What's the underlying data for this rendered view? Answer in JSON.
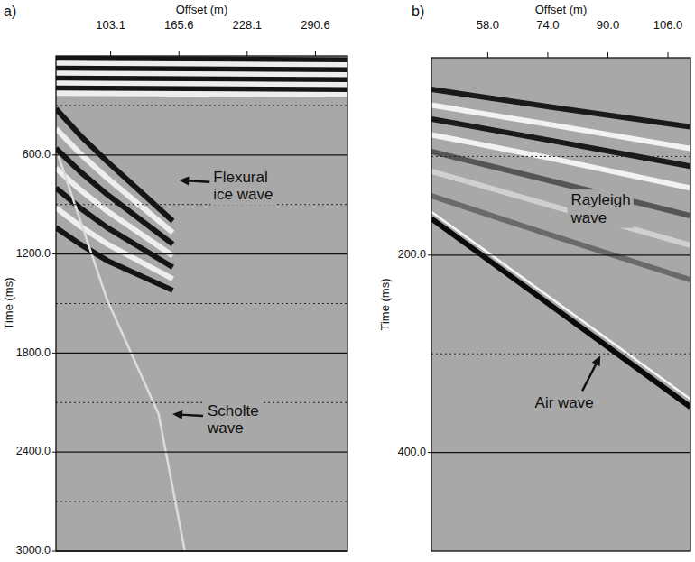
{
  "chart_data": [
    {
      "type": "line",
      "label": "a)",
      "x_label": "Offset (m)",
      "y_label": "Time (ms)",
      "xlim": [
        53,
        320
      ],
      "xticks": [
        103.1,
        165.6,
        228.1,
        290.6
      ],
      "ylim": [
        0,
        3000
      ],
      "yticks": [
        {
          "value": 600,
          "label": "600.0"
        },
        {
          "value": 1200,
          "label": "1200.0"
        },
        {
          "value": 1800,
          "label": "1800.0"
        },
        {
          "value": 2400,
          "label": "2400.0"
        },
        {
          "value": 3000,
          "label": "3000.0"
        }
      ],
      "grid": true,
      "series": [
        {
          "color": "#151515",
          "x": [
            53,
            320
          ],
          "values": [
            15,
            25
          ]
        },
        {
          "color": "#eeeeee",
          "x": [
            53,
            320
          ],
          "values": [
            45,
            55
          ]
        },
        {
          "color": "#151515",
          "x": [
            53,
            320
          ],
          "values": [
            75,
            85
          ]
        },
        {
          "color": "#eeeeee",
          "x": [
            53,
            320
          ],
          "values": [
            105,
            115
          ]
        },
        {
          "color": "#151515",
          "x": [
            53,
            320
          ],
          "values": [
            135,
            145
          ]
        },
        {
          "color": "#eeeeee",
          "x": [
            53,
            320
          ],
          "values": [
            165,
            175
          ]
        },
        {
          "color": "#151515",
          "x": [
            53,
            320
          ],
          "values": [
            195,
            205
          ]
        },
        {
          "color": "#eeeeee",
          "x": [
            53,
            320
          ],
          "values": [
            225,
            235
          ]
        },
        {
          "color": "#151515",
          "x": [
            53,
            75,
            100,
            130,
            160
          ],
          "values": [
            320,
            480,
            640,
            820,
            1000
          ]
        },
        {
          "color": "#eeeeee",
          "x": [
            53,
            75,
            100,
            130,
            160
          ],
          "values": [
            440,
            590,
            740,
            905,
            1070
          ]
        },
        {
          "color": "#151515",
          "x": [
            53,
            75,
            100,
            130,
            160
          ],
          "values": [
            560,
            700,
            840,
            990,
            1140
          ]
        },
        {
          "color": "#eeeeee",
          "x": [
            53,
            75,
            100,
            130,
            160
          ],
          "values": [
            680,
            810,
            940,
            1075,
            1210
          ]
        },
        {
          "color": "#151515",
          "x": [
            53,
            75,
            100,
            130,
            160
          ],
          "values": [
            800,
            920,
            1040,
            1160,
            1280
          ]
        },
        {
          "color": "#eeeeee",
          "x": [
            53,
            75,
            100,
            130,
            160
          ],
          "values": [
            920,
            1030,
            1140,
            1245,
            1350
          ]
        },
        {
          "color": "#151515",
          "x": [
            53,
            75,
            100,
            130,
            160
          ],
          "values": [
            1040,
            1140,
            1240,
            1330,
            1420
          ]
        },
        {
          "color": "#dcdcdc",
          "line_style": "thin",
          "x": [
            55,
            100,
            147,
            171
          ],
          "values": [
            600,
            1480,
            2170,
            3000
          ]
        }
      ],
      "annotations": [
        {
          "text": "Flexural ice wave",
          "x": 164,
          "y": 753
        },
        {
          "text": "Scholte wave",
          "x": 158,
          "y": 2170
        }
      ]
    },
    {
      "type": "line",
      "label": "b)",
      "x_label": "Offset (m)",
      "y_label": "Time (ms)",
      "xlim": [
        43,
        112
      ],
      "xticks": [
        {
          "value": 58,
          "label": "58.0"
        },
        {
          "value": 74,
          "label": "74.0"
        },
        {
          "value": 90,
          "label": "90.0"
        },
        {
          "value": 106,
          "label": "106.0"
        }
      ],
      "ylim": [
        0,
        500
      ],
      "yticks": [
        {
          "value": 200,
          "label": "200.0"
        },
        {
          "value": 400,
          "label": "400.0"
        }
      ],
      "grid": true,
      "series": [
        {
          "color": "#1a1a1a",
          "x": [
            43,
            75,
            112
          ],
          "values": [
            32,
            50,
            70
          ]
        },
        {
          "color": "#f2f2f2",
          "x": [
            43,
            75,
            112
          ],
          "values": [
            48,
            68,
            92
          ]
        },
        {
          "color": "#1a1a1a",
          "x": [
            43,
            75,
            112
          ],
          "values": [
            62,
            84,
            110
          ]
        },
        {
          "color": "#f2f2f2",
          "x": [
            43,
            75,
            112
          ],
          "values": [
            78,
            102,
            132
          ]
        },
        {
          "color": "#555555",
          "x": [
            43,
            75,
            112
          ],
          "values": [
            95,
            125,
            160
          ]
        },
        {
          "color": "#d0d0d0",
          "x": [
            43,
            75,
            112
          ],
          "values": [
            115,
            150,
            190
          ]
        },
        {
          "color": "#6a6a6a",
          "x": [
            43,
            75,
            112
          ],
          "values": [
            140,
            180,
            225
          ]
        },
        {
          "color": "#f5f5f5",
          "line_style": "thin",
          "x": [
            43,
            112
          ],
          "values": [
            156,
            346
          ]
        },
        {
          "color": "#0a0a0a",
          "x": [
            43,
            112
          ],
          "values": [
            163,
            354
          ]
        }
      ],
      "annotations": [
        {
          "text": "Air wave",
          "x": 88,
          "y": 300
        }
      ],
      "labels": [
        {
          "text": "Rayleigh wave",
          "x": 88,
          "y": 153
        }
      ]
    }
  ]
}
